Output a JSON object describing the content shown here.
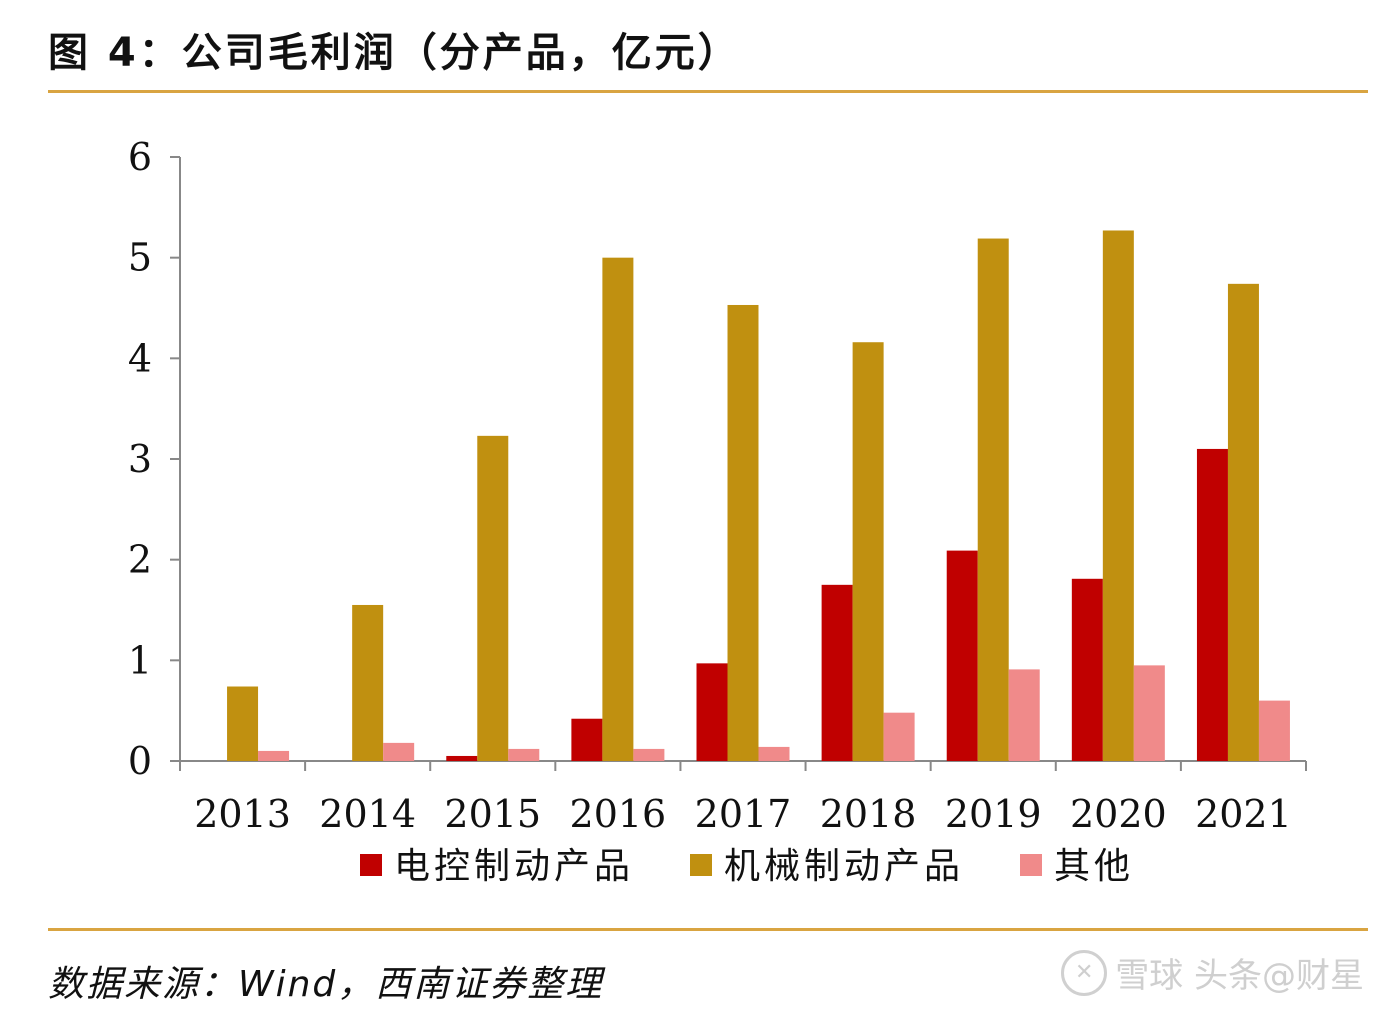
{
  "header": {
    "title": "图 4：公司毛利润（分产品，亿元）"
  },
  "footer": {
    "source": "数据来源：Wind，西南证券整理",
    "watermark": "雪球  头条@财星"
  },
  "chart_data": {
    "type": "bar",
    "title": "图 4：公司毛利润（分产品，亿元）",
    "categories": [
      "2013",
      "2014",
      "2015",
      "2016",
      "2017",
      "2018",
      "2019",
      "2020",
      "2021"
    ],
    "series": [
      {
        "name": "电控制动产品",
        "color": "#c00000",
        "values": [
          0,
          0,
          0.05,
          0.42,
          0.97,
          1.75,
          2.09,
          1.81,
          3.1
        ]
      },
      {
        "name": "机械制动产品",
        "color": "#c09010",
        "values": [
          0.74,
          1.55,
          3.23,
          5.0,
          4.53,
          4.16,
          5.19,
          5.27,
          4.74
        ]
      },
      {
        "name": "其他",
        "color": "#f08a8a",
        "values": [
          0.1,
          0.18,
          0.12,
          0.12,
          0.14,
          0.48,
          0.91,
          0.95,
          0.6
        ]
      }
    ],
    "ylim": [
      0,
      6
    ],
    "yticks": [
      0,
      1,
      2,
      3,
      4,
      5,
      6
    ],
    "xlabel": "",
    "ylabel": "",
    "grid": false,
    "legend_position": "bottom"
  }
}
